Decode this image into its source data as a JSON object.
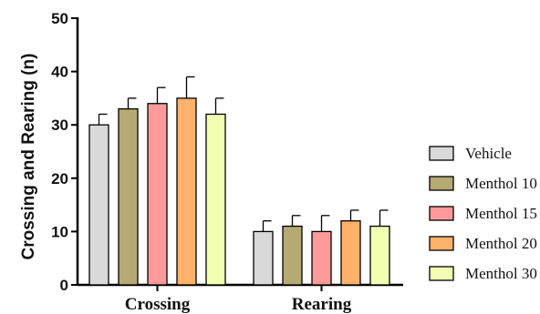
{
  "chart_data": {
    "type": "bar",
    "title": "",
    "xlabel": "",
    "ylabel": "Crossing and Rearing (n)",
    "ylim": [
      0,
      50
    ],
    "yticks": [
      0,
      10,
      20,
      30,
      40,
      50
    ],
    "grid": false,
    "legend_position": "right",
    "categories": [
      "Crossing",
      "Rearing"
    ],
    "series": [
      {
        "name": "Vehicle",
        "color": "#d9d9d9",
        "values": [
          30,
          10
        ],
        "errors": [
          2,
          2
        ]
      },
      {
        "name": "Menthol 10",
        "color": "#b5aa73",
        "values": [
          33,
          11
        ],
        "errors": [
          2,
          2
        ]
      },
      {
        "name": "Menthol 15",
        "color": "#ff9a9a",
        "values": [
          34,
          10
        ],
        "errors": [
          3,
          3
        ]
      },
      {
        "name": "Menthol 20",
        "color": "#ffb26b",
        "values": [
          35,
          12
        ],
        "errors": [
          4,
          2
        ]
      },
      {
        "name": "Menthol 30",
        "color": "#f2ffb3",
        "values": [
          32,
          11
        ],
        "errors": [
          3,
          3
        ]
      }
    ]
  }
}
